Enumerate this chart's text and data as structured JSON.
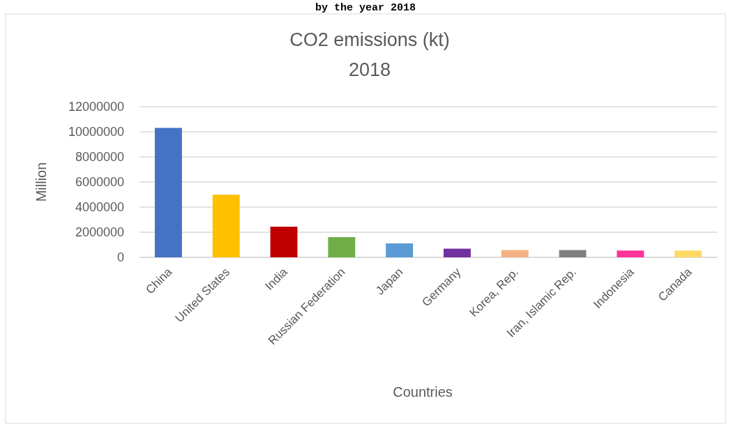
{
  "chart_data": {
    "type": "bar",
    "title": "CO2 emissions (kt)",
    "subtitle": "2018",
    "xlabel": "Countries",
    "ylabel": "Million",
    "annotations": [
      "by the year 2018"
    ],
    "categories": [
      "China",
      "United States",
      "India",
      "Russian Federation",
      "Japan",
      "Germany",
      "Korea, Rep.",
      "Iran, Islamic Rep.",
      "Indonesia",
      "Canada"
    ],
    "values": [
      10310000,
      4990000,
      2440000,
      1610000,
      1110000,
      690000,
      580000,
      580000,
      540000,
      540000
    ],
    "colors": [
      "#4472c4",
      "#ffc000",
      "#c00000",
      "#70ad47",
      "#5b9bd5",
      "#7030a0",
      "#f4b183",
      "#7f7f7f",
      "#ff3399",
      "#ffd966"
    ],
    "ylim": [
      0,
      12000000
    ],
    "yticks": [
      0,
      2000000,
      4000000,
      6000000,
      8000000,
      10000000,
      12000000
    ],
    "grid": "y"
  }
}
